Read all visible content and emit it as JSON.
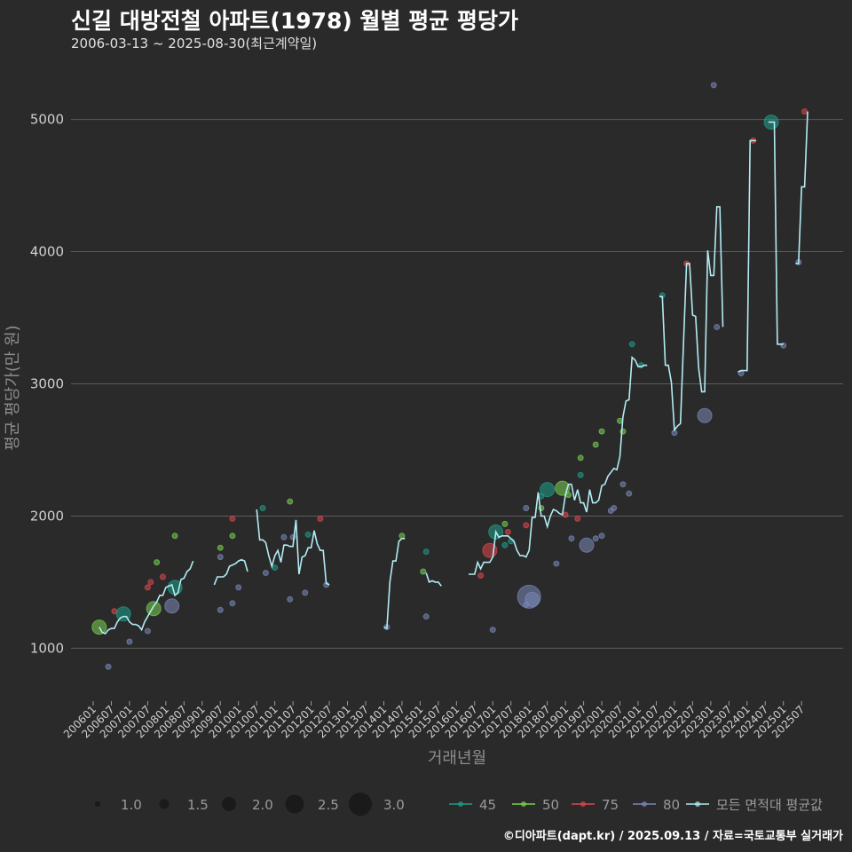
{
  "header": {
    "title": "신길 대방전철 아파트(1978) 월별 평균 평당가",
    "subtitle": "2006-03-13 ~ 2025-08-30(최근계약일)"
  },
  "footer": {
    "credit": "©디아파트(dapt.kr) / 2025.09.13 / 자료=국토교통부 실거래가"
  },
  "colors": {
    "background": "#2a2a2b",
    "grid": "#5c5c5c",
    "avg_line": "#b2ebf2",
    "s45": "#1f9e89",
    "s50": "#7ad151",
    "s75": "#e0474c",
    "s80": "#7a88b8"
  },
  "chart_data": {
    "type": "line",
    "title": "신길 대방전철 아파트(1978) 월별 평균 평당가",
    "xlabel": "거래년월",
    "ylabel": "평균 평당가(만 원)",
    "ylim": [
      600,
      5400
    ],
    "yticks": [
      1000,
      2000,
      3000,
      4000,
      5000
    ],
    "xlim": [
      0,
      236
    ],
    "xtick_labels": [
      "200601",
      "200607",
      "200701",
      "200707",
      "200801",
      "200807",
      "200901",
      "200907",
      "201001",
      "201007",
      "201101",
      "201107",
      "201201",
      "201207",
      "201301",
      "201307",
      "201401",
      "201407",
      "201501",
      "201507",
      "201601",
      "201607",
      "201701",
      "201707",
      "201801",
      "201807",
      "201901",
      "201907",
      "202001",
      "202007",
      "202101",
      "202107",
      "202201",
      "202207",
      "202301",
      "202307",
      "202401",
      "202407",
      "202501",
      "202507"
    ],
    "size_legend": {
      "title": "",
      "values": [
        "1.0",
        "1.5",
        "2.0",
        "2.5",
        "3.0"
      ]
    },
    "color_legend": [
      "45",
      "50",
      "75",
      "80",
      "모든 면적대 평균값"
    ],
    "avg_series_segments": [
      [
        [
          2,
          1160
        ],
        [
          3,
          1120
        ],
        [
          4,
          1110
        ],
        [
          5,
          1140
        ],
        [
          6,
          1150
        ],
        [
          7,
          1150
        ],
        [
          8,
          1200
        ],
        [
          9,
          1230
        ],
        [
          10,
          1240
        ],
        [
          11,
          1240
        ],
        [
          12,
          1200
        ],
        [
          13,
          1180
        ],
        [
          14,
          1180
        ],
        [
          15,
          1170
        ],
        [
          16,
          1140
        ],
        [
          17,
          1200
        ],
        [
          18,
          1240
        ],
        [
          19,
          1280
        ],
        [
          20,
          1320
        ],
        [
          21,
          1350
        ],
        [
          22,
          1400
        ],
        [
          23,
          1400
        ],
        [
          24,
          1460
        ],
        [
          25,
          1470
        ],
        [
          26,
          1480
        ],
        [
          27,
          1400
        ],
        [
          28,
          1420
        ],
        [
          29,
          1520
        ],
        [
          30,
          1530
        ],
        [
          31,
          1580
        ],
        [
          32,
          1600
        ],
        [
          33,
          1660
        ]
      ],
      [
        [
          40,
          1480
        ],
        [
          41,
          1540
        ],
        [
          42,
          1540
        ],
        [
          43,
          1540
        ],
        [
          44,
          1560
        ],
        [
          45,
          1620
        ],
        [
          46,
          1630
        ],
        [
          47,
          1640
        ],
        [
          48,
          1660
        ],
        [
          49,
          1670
        ],
        [
          50,
          1660
        ],
        [
          51,
          1580
        ]
      ],
      [
        [
          54,
          2050
        ],
        [
          55,
          1820
        ],
        [
          56,
          1820
        ],
        [
          57,
          1800
        ],
        [
          58,
          1700
        ],
        [
          59,
          1620
        ],
        [
          60,
          1700
        ],
        [
          61,
          1740
        ],
        [
          62,
          1650
        ],
        [
          63,
          1780
        ],
        [
          64,
          1780
        ],
        [
          65,
          1770
        ],
        [
          66,
          1770
        ],
        [
          67,
          1970
        ],
        [
          68,
          1560
        ],
        [
          69,
          1690
        ],
        [
          70,
          1700
        ],
        [
          71,
          1760
        ],
        [
          72,
          1760
        ],
        [
          73,
          1890
        ],
        [
          74,
          1790
        ],
        [
          75,
          1740
        ],
        [
          76,
          1740
        ],
        [
          77,
          1490
        ],
        [
          78,
          1480
        ]
      ],
      [
        [
          96,
          1160
        ],
        [
          97,
          1150
        ],
        [
          98,
          1500
        ],
        [
          99,
          1660
        ],
        [
          100,
          1660
        ],
        [
          101,
          1810
        ],
        [
          102,
          1830
        ],
        [
          103,
          1830
        ]
      ],
      [
        [
          110,
          1570
        ],
        [
          111,
          1500
        ],
        [
          112,
          1510
        ],
        [
          113,
          1500
        ],
        [
          114,
          1500
        ],
        [
          115,
          1470
        ]
      ],
      [
        [
          124,
          1560
        ],
        [
          125,
          1560
        ],
        [
          126,
          1560
        ],
        [
          127,
          1650
        ],
        [
          128,
          1600
        ],
        [
          129,
          1650
        ],
        [
          130,
          1650
        ],
        [
          131,
          1650
        ],
        [
          132,
          1690
        ],
        [
          133,
          1880
        ],
        [
          134,
          1840
        ],
        [
          135,
          1850
        ],
        [
          136,
          1850
        ],
        [
          137,
          1850
        ],
        [
          138,
          1830
        ],
        [
          139,
          1810
        ],
        [
          140,
          1740
        ],
        [
          141,
          1700
        ],
        [
          142,
          1700
        ],
        [
          143,
          1690
        ],
        [
          144,
          1740
        ],
        [
          145,
          1990
        ],
        [
          146,
          1990
        ],
        [
          147,
          2180
        ],
        [
          148,
          2000
        ],
        [
          149,
          2000
        ],
        [
          150,
          1920
        ],
        [
          151,
          2000
        ],
        [
          152,
          2050
        ],
        [
          153,
          2040
        ],
        [
          154,
          2020
        ],
        [
          155,
          2010
        ],
        [
          156,
          2160
        ],
        [
          157,
          2240
        ],
        [
          158,
          2240
        ],
        [
          159,
          2120
        ],
        [
          160,
          2200
        ],
        [
          161,
          2100
        ],
        [
          162,
          2100
        ],
        [
          163,
          2030
        ],
        [
          164,
          2200
        ],
        [
          165,
          2100
        ],
        [
          166,
          2100
        ],
        [
          167,
          2120
        ],
        [
          168,
          2230
        ],
        [
          169,
          2240
        ],
        [
          170,
          2300
        ],
        [
          171,
          2330
        ],
        [
          172,
          2360
        ],
        [
          173,
          2350
        ],
        [
          174,
          2450
        ],
        [
          175,
          2750
        ],
        [
          176,
          2870
        ],
        [
          177,
          2880
        ],
        [
          178,
          3200
        ],
        [
          179,
          3180
        ],
        [
          180,
          3130
        ],
        [
          181,
          3130
        ],
        [
          182,
          3140
        ],
        [
          183,
          3140
        ]
      ],
      [
        [
          187,
          3660
        ],
        [
          188,
          3660
        ],
        [
          189,
          3140
        ],
        [
          190,
          3140
        ],
        [
          191,
          3010
        ],
        [
          192,
          2650
        ],
        [
          193,
          2680
        ],
        [
          194,
          2700
        ],
        [
          195,
          3300
        ],
        [
          196,
          3910
        ],
        [
          197,
          3910
        ],
        [
          198,
          3520
        ],
        [
          199,
          3510
        ],
        [
          200,
          3120
        ],
        [
          201,
          2940
        ],
        [
          202,
          2940
        ],
        [
          203,
          4010
        ],
        [
          204,
          3820
        ],
        [
          205,
          3820
        ],
        [
          206,
          4340
        ],
        [
          207,
          4340
        ],
        [
          208,
          3430
        ]
      ],
      [
        [
          213,
          3090
        ],
        [
          214,
          3100
        ],
        [
          215,
          3100
        ],
        [
          216,
          3100
        ],
        [
          217,
          4840
        ],
        [
          218,
          4840
        ],
        [
          219,
          4840
        ]
      ],
      [
        [
          223,
          4980
        ],
        [
          224,
          4980
        ],
        [
          225,
          4980
        ],
        [
          226,
          3300
        ],
        [
          227,
          3300
        ],
        [
          228,
          3300
        ]
      ],
      [
        [
          232,
          3910
        ],
        [
          233,
          3910
        ],
        [
          234,
          4490
        ],
        [
          235,
          4490
        ],
        [
          236,
          5060
        ]
      ]
    ],
    "points": [
      {
        "s": "50",
        "x": 2,
        "y": 1160,
        "n": 2
      },
      {
        "s": "80",
        "x": 5,
        "y": 860,
        "n": 1
      },
      {
        "s": "75",
        "x": 7,
        "y": 1280,
        "n": 1
      },
      {
        "s": "45",
        "x": 10,
        "y": 1260,
        "n": 2
      },
      {
        "s": "80",
        "x": 12,
        "y": 1050,
        "n": 1
      },
      {
        "s": "80",
        "x": 18,
        "y": 1130,
        "n": 1
      },
      {
        "s": "75",
        "x": 18,
        "y": 1460,
        "n": 1
      },
      {
        "s": "75",
        "x": 19,
        "y": 1500,
        "n": 1
      },
      {
        "s": "50",
        "x": 20,
        "y": 1300,
        "n": 2
      },
      {
        "s": "50",
        "x": 21,
        "y": 1650,
        "n": 1
      },
      {
        "s": "75",
        "x": 23,
        "y": 1540,
        "n": 1
      },
      {
        "s": "80",
        "x": 26,
        "y": 1320,
        "n": 2
      },
      {
        "s": "45",
        "x": 27,
        "y": 1460,
        "n": 2
      },
      {
        "s": "50",
        "x": 27,
        "y": 1850,
        "n": 1
      },
      {
        "s": "80",
        "x": 42,
        "y": 1290,
        "n": 1
      },
      {
        "s": "50",
        "x": 42,
        "y": 1760,
        "n": 1
      },
      {
        "s": "80",
        "x": 42,
        "y": 1690,
        "n": 1
      },
      {
        "s": "80",
        "x": 46,
        "y": 1340,
        "n": 1
      },
      {
        "s": "50",
        "x": 46,
        "y": 1850,
        "n": 1
      },
      {
        "s": "75",
        "x": 46,
        "y": 1980,
        "n": 1
      },
      {
        "s": "80",
        "x": 48,
        "y": 1460,
        "n": 1
      },
      {
        "s": "45",
        "x": 56,
        "y": 2060,
        "n": 1
      },
      {
        "s": "80",
        "x": 57,
        "y": 1570,
        "n": 1
      },
      {
        "s": "45",
        "x": 60,
        "y": 1610,
        "n": 1
      },
      {
        "s": "80",
        "x": 63,
        "y": 1840,
        "n": 1
      },
      {
        "s": "80",
        "x": 65,
        "y": 1370,
        "n": 1
      },
      {
        "s": "50",
        "x": 65,
        "y": 2110,
        "n": 1
      },
      {
        "s": "80",
        "x": 66,
        "y": 1840,
        "n": 1
      },
      {
        "s": "80",
        "x": 70,
        "y": 1420,
        "n": 1
      },
      {
        "s": "45",
        "x": 71,
        "y": 1860,
        "n": 1
      },
      {
        "s": "75",
        "x": 75,
        "y": 1980,
        "n": 1
      },
      {
        "s": "80",
        "x": 77,
        "y": 1480,
        "n": 1
      },
      {
        "s": "80",
        "x": 97,
        "y": 1160,
        "n": 1
      },
      {
        "s": "50",
        "x": 102,
        "y": 1850,
        "n": 1
      },
      {
        "s": "50",
        "x": 109,
        "y": 1580,
        "n": 1
      },
      {
        "s": "80",
        "x": 110,
        "y": 1240,
        "n": 1
      },
      {
        "s": "45",
        "x": 110,
        "y": 1730,
        "n": 1
      },
      {
        "s": "75",
        "x": 128,
        "y": 1550,
        "n": 1
      },
      {
        "s": "75",
        "x": 131,
        "y": 1740,
        "n": 2
      },
      {
        "s": "80",
        "x": 132,
        "y": 1140,
        "n": 1
      },
      {
        "s": "45",
        "x": 133,
        "y": 1880,
        "n": 2
      },
      {
        "s": "50",
        "x": 136,
        "y": 1940,
        "n": 1
      },
      {
        "s": "45",
        "x": 136,
        "y": 1780,
        "n": 1
      },
      {
        "s": "75",
        "x": 137,
        "y": 1880,
        "n": 1
      },
      {
        "s": "45",
        "x": 138,
        "y": 1810,
        "n": 1
      },
      {
        "s": "80",
        "x": 143,
        "y": 2060,
        "n": 1
      },
      {
        "s": "80",
        "x": 143,
        "y": 1330,
        "n": 1
      },
      {
        "s": "75",
        "x": 143,
        "y": 1930,
        "n": 1
      },
      {
        "s": "80",
        "x": 144,
        "y": 1390,
        "n": 3
      },
      {
        "s": "80",
        "x": 145,
        "y": 1370,
        "n": 2
      },
      {
        "s": "50",
        "x": 148,
        "y": 2060,
        "n": 1
      },
      {
        "s": "45",
        "x": 148,
        "y": 2150,
        "n": 1
      },
      {
        "s": "45",
        "x": 150,
        "y": 2200,
        "n": 2
      },
      {
        "s": "80",
        "x": 153,
        "y": 1640,
        "n": 1
      },
      {
        "s": "50",
        "x": 155,
        "y": 2210,
        "n": 2
      },
      {
        "s": "75",
        "x": 156,
        "y": 2010,
        "n": 1
      },
      {
        "s": "50",
        "x": 157,
        "y": 2160,
        "n": 1
      },
      {
        "s": "80",
        "x": 158,
        "y": 1830,
        "n": 1
      },
      {
        "s": "75",
        "x": 160,
        "y": 1980,
        "n": 1
      },
      {
        "s": "50",
        "x": 161,
        "y": 2440,
        "n": 1
      },
      {
        "s": "45",
        "x": 161,
        "y": 2310,
        "n": 1
      },
      {
        "s": "80",
        "x": 163,
        "y": 1780,
        "n": 2
      },
      {
        "s": "80",
        "x": 166,
        "y": 1830,
        "n": 1
      },
      {
        "s": "50",
        "x": 166,
        "y": 2540,
        "n": 1
      },
      {
        "s": "80",
        "x": 168,
        "y": 1850,
        "n": 1
      },
      {
        "s": "50",
        "x": 168,
        "y": 2640,
        "n": 1
      },
      {
        "s": "80",
        "x": 171,
        "y": 2040,
        "n": 1
      },
      {
        "s": "80",
        "x": 172,
        "y": 2060,
        "n": 1
      },
      {
        "s": "50",
        "x": 174,
        "y": 2720,
        "n": 1
      },
      {
        "s": "50",
        "x": 175,
        "y": 2640,
        "n": 1
      },
      {
        "s": "80",
        "x": 175,
        "y": 2240,
        "n": 1
      },
      {
        "s": "80",
        "x": 177,
        "y": 2170,
        "n": 1
      },
      {
        "s": "45",
        "x": 178,
        "y": 3300,
        "n": 1
      },
      {
        "s": "45",
        "x": 181,
        "y": 3140,
        "n": 1
      },
      {
        "s": "45",
        "x": 188,
        "y": 3670,
        "n": 1
      },
      {
        "s": "80",
        "x": 192,
        "y": 2630,
        "n": 1
      },
      {
        "s": "75",
        "x": 196,
        "y": 3910,
        "n": 1
      },
      {
        "s": "80",
        "x": 202,
        "y": 2760,
        "n": 2
      },
      {
        "s": "80",
        "x": 205,
        "y": 5260,
        "n": 1
      },
      {
        "s": "80",
        "x": 206,
        "y": 3430,
        "n": 1
      },
      {
        "s": "80",
        "x": 214,
        "y": 3080,
        "n": 1
      },
      {
        "s": "75",
        "x": 218,
        "y": 4840,
        "n": 1
      },
      {
        "s": "45",
        "x": 224,
        "y": 4980,
        "n": 2
      },
      {
        "s": "80",
        "x": 228,
        "y": 3290,
        "n": 1
      },
      {
        "s": "80",
        "x": 233,
        "y": 3920,
        "n": 1
      },
      {
        "s": "75",
        "x": 235,
        "y": 5060,
        "n": 1
      }
    ]
  }
}
